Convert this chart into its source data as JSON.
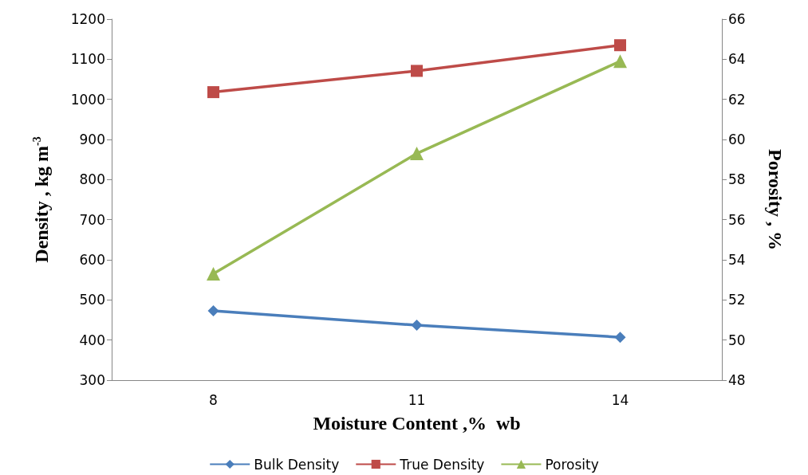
{
  "chart_data": {
    "type": "line",
    "xlabel": "Moisture Content ,%  wb",
    "ylabel": "Density , kg m$^{-3}$",
    "y2label": "Porosity , %",
    "categories": [
      "8",
      "11",
      "14"
    ],
    "series": [
      {
        "name": "Bulk Density",
        "color": "#4a7ebb",
        "marker": "diamond",
        "values": [
          473,
          437,
          407
        ]
      },
      {
        "name": "True Density",
        "color": "#be4b48",
        "marker": "square",
        "values": [
          1018,
          1071,
          1135
        ]
      },
      {
        "name": "Porosity",
        "color": "#98b954",
        "marker": "triangle",
        "axis": "y2",
        "values": [
          53.3,
          59.3,
          63.9
        ]
      }
    ],
    "ylim": [
      300,
      1200
    ],
    "yticks": [
      300,
      400,
      500,
      600,
      700,
      800,
      900,
      1000,
      1100,
      1200
    ],
    "y2lim": [
      48,
      66
    ],
    "y2ticks": [
      48,
      50,
      52,
      54,
      56,
      58,
      60,
      62,
      64,
      66
    ],
    "grid": false,
    "legend": "bottom"
  }
}
